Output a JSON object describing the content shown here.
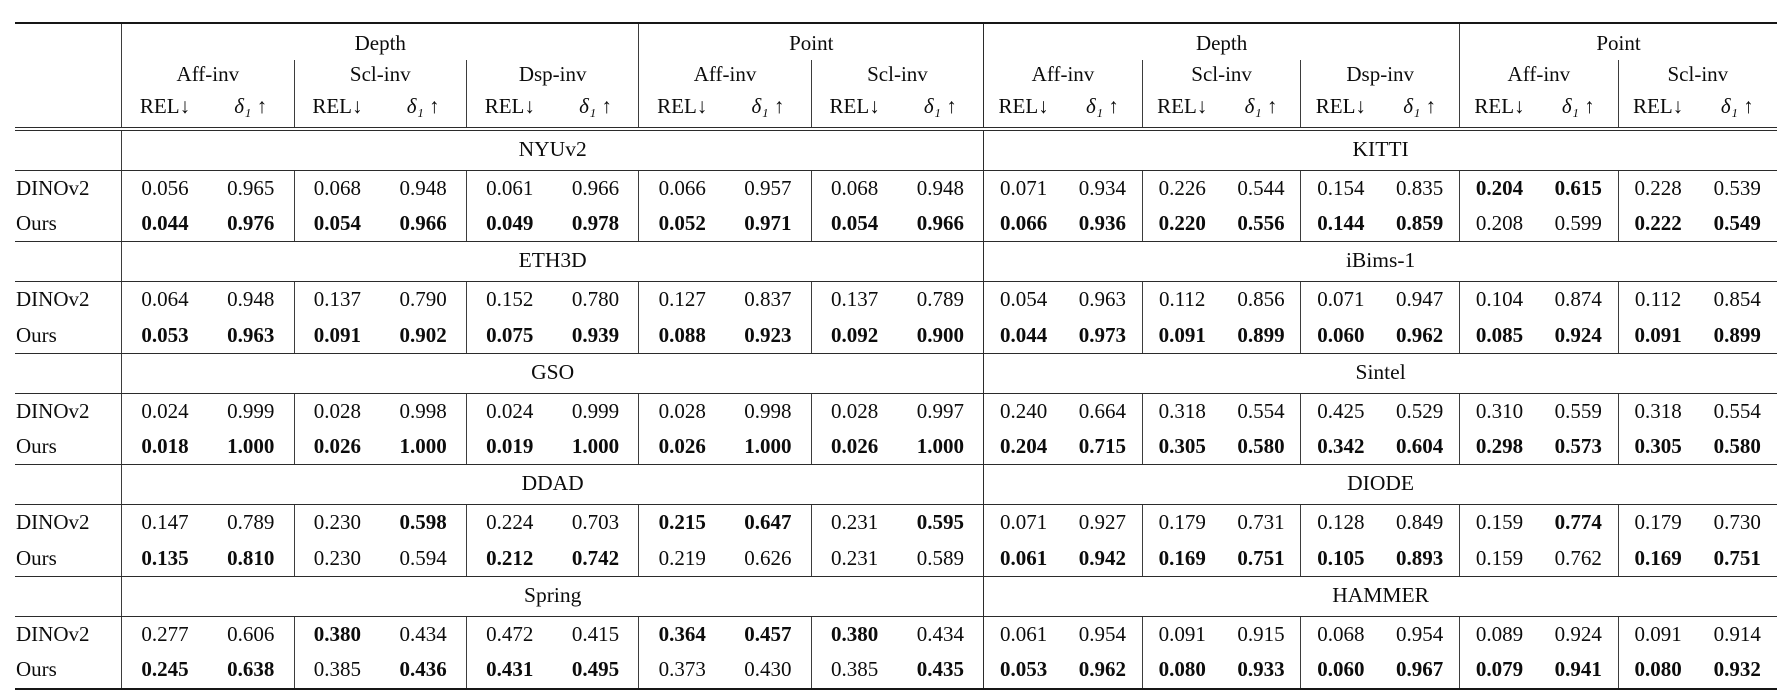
{
  "page": {
    "background_color": "#ffffff",
    "text_color": "#0c0c0c",
    "rule_color": "#161616"
  },
  "chart_data": {
    "type": "table",
    "description": "Benchmark comparison table of DINOv2 vs Ours across depth/point estimation datasets",
    "header": {
      "groups": [
        {
          "label": "Depth",
          "subgroups": [
            "Aff-inv",
            "Scl-inv",
            "Dsp-inv"
          ]
        },
        {
          "label": "Point",
          "subgroups": [
            "Aff-inv",
            "Scl-inv"
          ]
        }
      ],
      "metrics": [
        "REL↓",
        "δ₁ ↑"
      ]
    },
    "models": [
      "DINOv2",
      "Ours"
    ],
    "sections": [
      {
        "left": {
          "name": "NYUv2",
          "rows": [
            {
              "model": "DINOv2",
              "values": [
                "0.056",
                "0.965",
                "0.068",
                "0.948",
                "0.061",
                "0.966",
                "0.066",
                "0.957",
                "0.068",
                "0.948"
              ],
              "bold": [
                0,
                0,
                0,
                0,
                0,
                0,
                0,
                0,
                0,
                0
              ]
            },
            {
              "model": "Ours",
              "values": [
                "0.044",
                "0.976",
                "0.054",
                "0.966",
                "0.049",
                "0.978",
                "0.052",
                "0.971",
                "0.054",
                "0.966"
              ],
              "bold": [
                1,
                1,
                1,
                1,
                1,
                1,
                1,
                1,
                1,
                1
              ]
            }
          ]
        },
        "right": {
          "name": "KITTI",
          "rows": [
            {
              "model": "DINOv2",
              "values": [
                "0.071",
                "0.934",
                "0.226",
                "0.544",
                "0.154",
                "0.835",
                "0.204",
                "0.615",
                "0.228",
                "0.539"
              ],
              "bold": [
                0,
                0,
                0,
                0,
                0,
                0,
                1,
                1,
                0,
                0
              ]
            },
            {
              "model": "Ours",
              "values": [
                "0.066",
                "0.936",
                "0.220",
                "0.556",
                "0.144",
                "0.859",
                "0.208",
                "0.599",
                "0.222",
                "0.549"
              ],
              "bold": [
                1,
                1,
                1,
                1,
                1,
                1,
                0,
                0,
                1,
                1
              ]
            }
          ]
        }
      },
      {
        "left": {
          "name": "ETH3D",
          "rows": [
            {
              "model": "DINOv2",
              "values": [
                "0.064",
                "0.948",
                "0.137",
                "0.790",
                "0.152",
                "0.780",
                "0.127",
                "0.837",
                "0.137",
                "0.789"
              ],
              "bold": [
                0,
                0,
                0,
                0,
                0,
                0,
                0,
                0,
                0,
                0
              ]
            },
            {
              "model": "Ours",
              "values": [
                "0.053",
                "0.963",
                "0.091",
                "0.902",
                "0.075",
                "0.939",
                "0.088",
                "0.923",
                "0.092",
                "0.900"
              ],
              "bold": [
                1,
                1,
                1,
                1,
                1,
                1,
                1,
                1,
                1,
                1
              ]
            }
          ]
        },
        "right": {
          "name": "iBims-1",
          "rows": [
            {
              "model": "DINOv2",
              "values": [
                "0.054",
                "0.963",
                "0.112",
                "0.856",
                "0.071",
                "0.947",
                "0.104",
                "0.874",
                "0.112",
                "0.854"
              ],
              "bold": [
                0,
                0,
                0,
                0,
                0,
                0,
                0,
                0,
                0,
                0
              ]
            },
            {
              "model": "Ours",
              "values": [
                "0.044",
                "0.973",
                "0.091",
                "0.899",
                "0.060",
                "0.962",
                "0.085",
                "0.924",
                "0.091",
                "0.899"
              ],
              "bold": [
                1,
                1,
                1,
                1,
                1,
                1,
                1,
                1,
                1,
                1
              ]
            }
          ]
        }
      },
      {
        "left": {
          "name": "GSO",
          "rows": [
            {
              "model": "DINOv2",
              "values": [
                "0.024",
                "0.999",
                "0.028",
                "0.998",
                "0.024",
                "0.999",
                "0.028",
                "0.998",
                "0.028",
                "0.997"
              ],
              "bold": [
                0,
                0,
                0,
                0,
                0,
                0,
                0,
                0,
                0,
                0
              ]
            },
            {
              "model": "Ours",
              "values": [
                "0.018",
                "1.000",
                "0.026",
                "1.000",
                "0.019",
                "1.000",
                "0.026",
                "1.000",
                "0.026",
                "1.000"
              ],
              "bold": [
                1,
                1,
                1,
                1,
                1,
                1,
                1,
                1,
                1,
                1
              ]
            }
          ]
        },
        "right": {
          "name": "Sintel",
          "rows": [
            {
              "model": "DINOv2",
              "values": [
                "0.240",
                "0.664",
                "0.318",
                "0.554",
                "0.425",
                "0.529",
                "0.310",
                "0.559",
                "0.318",
                "0.554"
              ],
              "bold": [
                0,
                0,
                0,
                0,
                0,
                0,
                0,
                0,
                0,
                0
              ]
            },
            {
              "model": "Ours",
              "values": [
                "0.204",
                "0.715",
                "0.305",
                "0.580",
                "0.342",
                "0.604",
                "0.298",
                "0.573",
                "0.305",
                "0.580"
              ],
              "bold": [
                1,
                1,
                1,
                1,
                1,
                1,
                1,
                1,
                1,
                1
              ]
            }
          ]
        }
      },
      {
        "left": {
          "name": "DDAD",
          "rows": [
            {
              "model": "DINOv2",
              "values": [
                "0.147",
                "0.789",
                "0.230",
                "0.598",
                "0.224",
                "0.703",
                "0.215",
                "0.647",
                "0.231",
                "0.595"
              ],
              "bold": [
                0,
                0,
                0,
                1,
                0,
                0,
                1,
                1,
                0,
                1
              ]
            },
            {
              "model": "Ours",
              "values": [
                "0.135",
                "0.810",
                "0.230",
                "0.594",
                "0.212",
                "0.742",
                "0.219",
                "0.626",
                "0.231",
                "0.589"
              ],
              "bold": [
                1,
                1,
                0,
                0,
                1,
                1,
                0,
                0,
                0,
                0
              ]
            }
          ]
        },
        "right": {
          "name": "DIODE",
          "rows": [
            {
              "model": "DINOv2",
              "values": [
                "0.071",
                "0.927",
                "0.179",
                "0.731",
                "0.128",
                "0.849",
                "0.159",
                "0.774",
                "0.179",
                "0.730"
              ],
              "bold": [
                0,
                0,
                0,
                0,
                0,
                0,
                0,
                1,
                0,
                0
              ]
            },
            {
              "model": "Ours",
              "values": [
                "0.061",
                "0.942",
                "0.169",
                "0.751",
                "0.105",
                "0.893",
                "0.159",
                "0.762",
                "0.169",
                "0.751"
              ],
              "bold": [
                1,
                1,
                1,
                1,
                1,
                1,
                0,
                0,
                1,
                1
              ]
            }
          ]
        }
      },
      {
        "left": {
          "name": "Spring",
          "rows": [
            {
              "model": "DINOv2",
              "values": [
                "0.277",
                "0.606",
                "0.380",
                "0.434",
                "0.472",
                "0.415",
                "0.364",
                "0.457",
                "0.380",
                "0.434"
              ],
              "bold": [
                0,
                0,
                1,
                0,
                0,
                0,
                1,
                1,
                1,
                0
              ]
            },
            {
              "model": "Ours",
              "values": [
                "0.245",
                "0.638",
                "0.385",
                "0.436",
                "0.431",
                "0.495",
                "0.373",
                "0.430",
                "0.385",
                "0.435"
              ],
              "bold": [
                1,
                1,
                0,
                1,
                1,
                1,
                0,
                0,
                0,
                1
              ]
            }
          ]
        },
        "right": {
          "name": "HAMMER",
          "rows": [
            {
              "model": "DINOv2",
              "values": [
                "0.061",
                "0.954",
                "0.091",
                "0.915",
                "0.068",
                "0.954",
                "0.089",
                "0.924",
                "0.091",
                "0.914"
              ],
              "bold": [
                0,
                0,
                0,
                0,
                0,
                0,
                0,
                0,
                0,
                0
              ]
            },
            {
              "model": "Ours",
              "values": [
                "0.053",
                "0.962",
                "0.080",
                "0.933",
                "0.060",
                "0.967",
                "0.079",
                "0.941",
                "0.080",
                "0.932"
              ],
              "bold": [
                1,
                1,
                1,
                1,
                1,
                1,
                1,
                1,
                1,
                1
              ]
            }
          ]
        }
      }
    ]
  }
}
